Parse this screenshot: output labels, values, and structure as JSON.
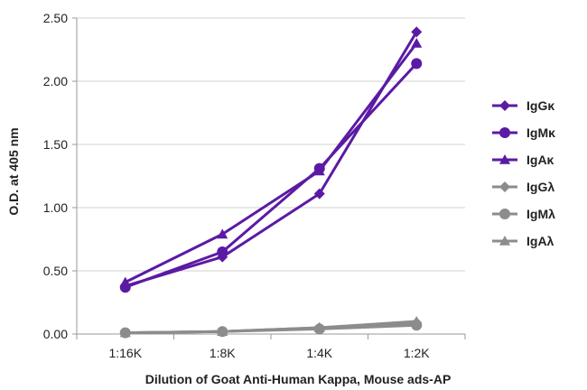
{
  "chart_data": {
    "type": "line",
    "title": "",
    "xlabel": "Dilution of Goat Anti-Human Kappa, Mouse ads-AP",
    "ylabel": "O.D. at 405 nm",
    "categories": [
      "1:16K",
      "1:8K",
      "1:4K",
      "1:2K"
    ],
    "ylim": [
      0,
      2.5
    ],
    "yticks": [
      "0.00",
      "0.50",
      "1.00",
      "1.50",
      "2.00",
      "2.50"
    ],
    "grid": "horizontal",
    "legend_position": "right",
    "series": [
      {
        "name": "IgGκ",
        "values": [
          0.38,
          0.61,
          1.11,
          2.39
        ],
        "color": "#5b1aa4",
        "marker": "diamond"
      },
      {
        "name": "IgMκ",
        "values": [
          0.37,
          0.65,
          1.31,
          2.14
        ],
        "color": "#5b1aa4",
        "marker": "circle"
      },
      {
        "name": "IgAκ",
        "values": [
          0.41,
          0.79,
          1.29,
          2.3
        ],
        "color": "#5b1aa4",
        "marker": "triangle"
      },
      {
        "name": "IgGλ",
        "values": [
          0.01,
          0.02,
          0.05,
          0.09
        ],
        "color": "#8c8c8c",
        "marker": "diamond"
      },
      {
        "name": "IgMλ",
        "values": [
          0.01,
          0.02,
          0.04,
          0.07
        ],
        "color": "#8c8c8c",
        "marker": "circle"
      },
      {
        "name": "IgAλ",
        "values": [
          0.01,
          0.02,
          0.05,
          0.1
        ],
        "color": "#8c8c8c",
        "marker": "triangle"
      }
    ]
  }
}
